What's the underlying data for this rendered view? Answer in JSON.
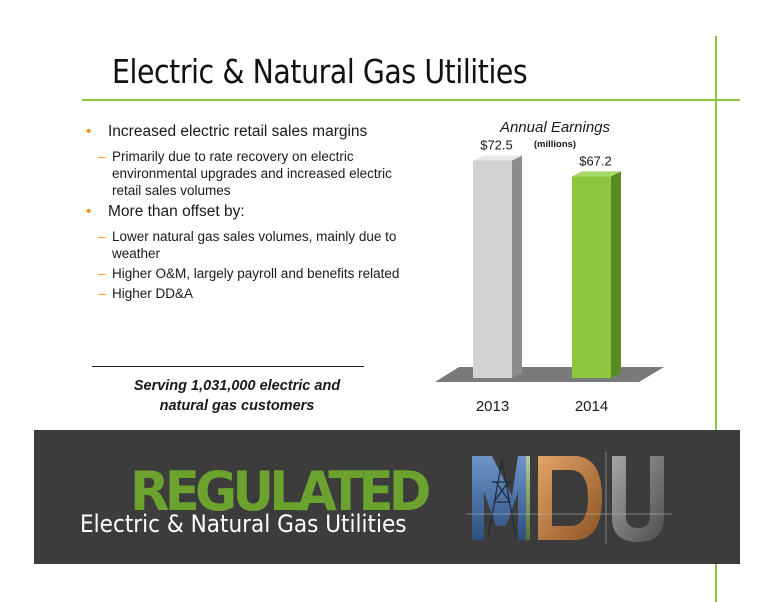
{
  "slide": {
    "title": "Electric & Natural Gas Utilities",
    "bullets": [
      {
        "text": "Increased electric retail sales margins",
        "subs": [
          "Primarily due to rate recovery on electric environmental upgrades and increased electric retail sales volumes"
        ]
      },
      {
        "text": "More than offset by:",
        "subs": [
          "Lower natural gas sales volumes, mainly due to weather",
          "Higher O&M, largely payroll and benefits related",
          "Higher DD&A"
        ]
      }
    ],
    "serving_line1": "Serving 1,031,000  electric and",
    "serving_line2": "natural gas customers"
  },
  "banner": {
    "word": "REGULATED",
    "subtitle": "Electric & Natural Gas Utilities",
    "logo_icon": "mdu-photo-logo-icon"
  },
  "colors": {
    "accent_green": "#8cc63f",
    "bullet_orange": "#f7941d",
    "bar_2013": "#d4d1d1",
    "bar_2014": "#8cc63f",
    "banner_bg": "#3c3c3c",
    "regulated_green": "#6ba32e"
  },
  "chart_data": {
    "type": "bar",
    "title": "Annual Earnings",
    "subtitle": "(millions)",
    "categories": [
      "2013",
      "2014"
    ],
    "values": [
      72.5,
      67.2
    ],
    "data_labels": [
      "$72.5",
      "$67.2"
    ],
    "ylim": [
      0,
      80
    ],
    "grid": false,
    "legend": "none",
    "style": "3d-column"
  }
}
